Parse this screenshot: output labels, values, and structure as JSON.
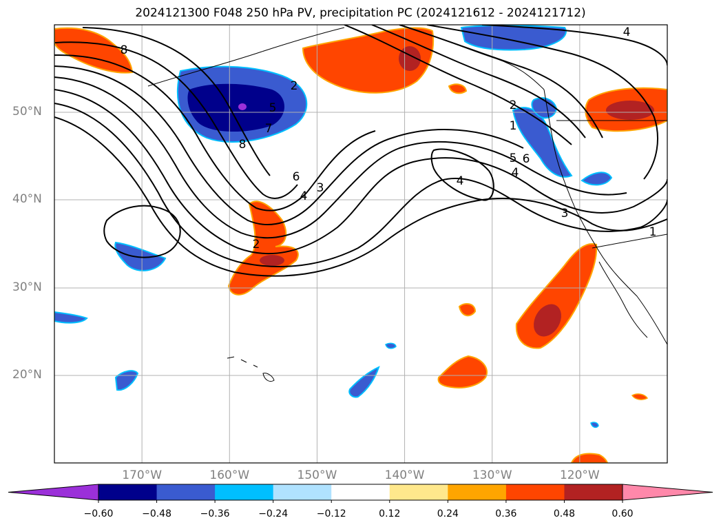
{
  "title": "2024121300 F048 250 hPa PV, precipitation PC (2024121612 - 2024121712)",
  "map_extent": {
    "lon": [
      -180,
      -110
    ],
    "lat": [
      10,
      60
    ]
  },
  "lat_labels": [
    {
      "lat": 50,
      "text": "50°N"
    },
    {
      "lat": 40,
      "text": "40°N"
    },
    {
      "lat": 30,
      "text": "30°N"
    },
    {
      "lat": 20,
      "text": "20°N"
    }
  ],
  "lon_labels": [
    {
      "lon": -170,
      "text": "170°W"
    },
    {
      "lon": -160,
      "text": "160°W"
    },
    {
      "lon": -150,
      "text": "150°W"
    },
    {
      "lon": -140,
      "text": "140°W"
    },
    {
      "lon": -130,
      "text": "130°W"
    },
    {
      "lon": -120,
      "text": "120°W"
    }
  ],
  "contour_labels": [
    "8",
    "2",
    "5",
    "7",
    "8",
    "6",
    "4",
    "3",
    "2",
    "4",
    "1",
    "5",
    "4",
    "6",
    "3",
    "4",
    "1",
    "2"
  ],
  "colorbar": {
    "ticks": [
      "−0.60",
      "−0.48",
      "−0.36",
      "−0.24",
      "−0.12",
      "0.12",
      "0.24",
      "0.36",
      "0.48",
      "0.60"
    ],
    "colors": [
      "#9b30d9",
      "#00008b",
      "#3a5bd0",
      "#00bfff",
      "#b0e2ff",
      "#ffffff",
      "#ffe88c",
      "#ffa500",
      "#ff4500",
      "#b22222",
      "#ff88aa"
    ]
  }
}
